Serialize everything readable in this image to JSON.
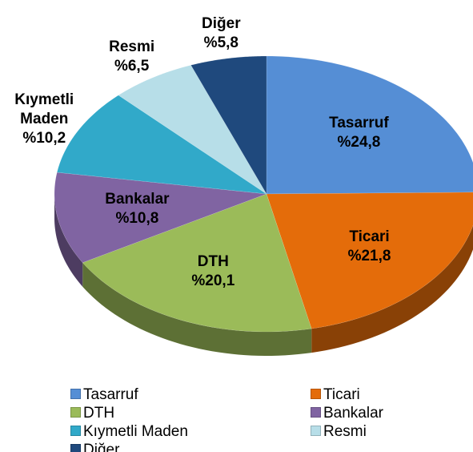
{
  "chart_data": {
    "type": "pie",
    "categories": [
      "Tasarruf",
      "Ticari",
      "DTH",
      "Bankalar",
      "Kıymetli Maden",
      "Resmi",
      "Diğer"
    ],
    "values": [
      24.8,
      21.8,
      20.1,
      10.8,
      10.2,
      6.5,
      5.8
    ],
    "value_labels": [
      "%24,8",
      "%21,8",
      "%20,1",
      "%10,8",
      "%10,2",
      "%6,5",
      "%5,8"
    ],
    "colors": [
      "#558ed5",
      "#e46c0a",
      "#9bbb59",
      "#8064a2",
      "#31a9c9",
      "#b7dee8",
      "#1f497d"
    ],
    "legend": "bottom"
  }
}
